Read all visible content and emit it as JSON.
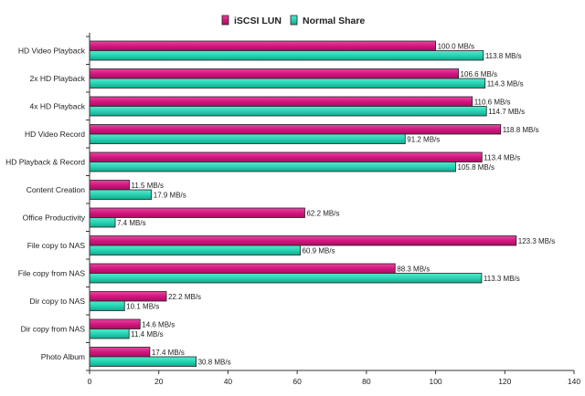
{
  "chart_data": {
    "type": "bar",
    "orientation": "horizontal",
    "categories": [
      "HD Video Playback",
      "2x HD Playback",
      "4x HD Playback",
      "HD Video Record",
      "HD Playback & Record",
      "Content Creation",
      "Office Productivity",
      "File copy to NAS",
      "File copy from NAS",
      "Dir copy to NAS",
      "Dir copy from NAS",
      "Photo Album"
    ],
    "series": [
      {
        "name": "iSCSI LUN",
        "color": "#d4167f",
        "values": [
          100.0,
          106.6,
          110.6,
          118.8,
          113.4,
          11.5,
          62.2,
          123.3,
          88.3,
          22.2,
          14.6,
          17.4
        ],
        "labels": [
          "100.0 MB/s",
          "106.6 MB/s",
          "110.6 MB/s",
          "118.8 MB/s",
          "113.4 MB/s",
          "11.5 MB/s",
          "62.2 MB/s",
          "123.3 MB/s",
          "88.3 MB/s",
          "22.2 MB/s",
          "14.6 MB/s",
          "17.4 MB/s"
        ]
      },
      {
        "name": "Normal Share",
        "color": "#25d4b3",
        "values": [
          113.8,
          114.3,
          114.7,
          91.2,
          105.8,
          17.9,
          7.4,
          60.9,
          113.3,
          10.1,
          11.4,
          30.8
        ],
        "labels": [
          "113.8 MB/s",
          "114.3 MB/s",
          "114.7 MB/s",
          "91.2 MB/s",
          "105.8 MB/s",
          "17.9 MB/s",
          "7.4 MB/s",
          "60.9 MB/s",
          "113.3 MB/s",
          "10.1 MB/s",
          "11.4 MB/s",
          "30.8 MB/s"
        ]
      }
    ],
    "xlim": [
      0,
      140
    ],
    "xticks": [
      "0",
      "20",
      "40",
      "60",
      "80",
      "100",
      "120",
      "140"
    ],
    "xticks_values": [
      0,
      20,
      40,
      60,
      80,
      100,
      120,
      140
    ],
    "grid": false,
    "legend_position": "top-center",
    "title": "",
    "xlabel": "",
    "ylabel": ""
  }
}
